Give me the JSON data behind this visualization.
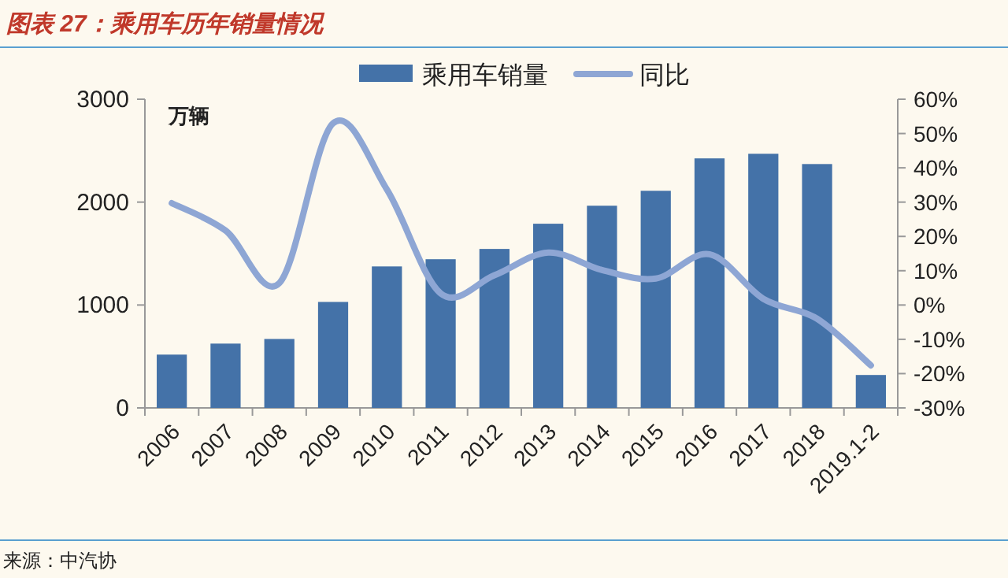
{
  "chart_data": {
    "type": "bar",
    "title": "图表 27：乘用车历年销量情况",
    "ylabel": "万辆",
    "categories": [
      "2006",
      "2007",
      "2008",
      "2009",
      "2010",
      "2011",
      "2012",
      "2013",
      "2014",
      "2015",
      "2016",
      "2017",
      "2018",
      "2019.1-2"
    ],
    "series": [
      {
        "name": "乘用车销量",
        "color": "#4472a8",
        "values": [
          518,
          625,
          670,
          1030,
          1375,
          1445,
          1545,
          1790,
          1965,
          2110,
          2425,
          2470,
          2370,
          320
        ]
      },
      {
        "name": "同比",
        "type": "line",
        "axis": "y2",
        "color": "#8ea6d4",
        "values": [
          29.7,
          21.7,
          6.4,
          53,
          33.7,
          3.4,
          8.7,
          15.3,
          10.2,
          7.7,
          14.8,
          1.8,
          -4,
          -17.6
        ]
      }
    ],
    "ylim": [
      0,
      3000
    ],
    "yticks": [
      0,
      1000,
      2000,
      3000
    ],
    "y2lim": [
      -30,
      60
    ],
    "y2ticks": [
      {
        "value": -30,
        "label": "-30%"
      },
      {
        "value": -20,
        "label": "-20%"
      },
      {
        "value": -10,
        "label": "-10%"
      },
      {
        "value": 0,
        "label": "0%"
      },
      {
        "value": 10,
        "label": "10%"
      },
      {
        "value": 20,
        "label": "20%"
      },
      {
        "value": 30,
        "label": "30%"
      },
      {
        "value": 40,
        "label": "40%"
      },
      {
        "value": 50,
        "label": "50%"
      },
      {
        "value": 60,
        "label": "60%"
      }
    ],
    "legend": "top",
    "grid": false,
    "annotations": [
      "来源：中汽协"
    ]
  }
}
